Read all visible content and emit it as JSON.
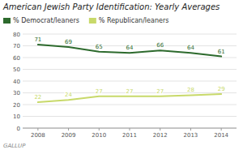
{
  "chart_data": {
    "type": "line",
    "title": "American Jewish Party Identification: Yearly Averages",
    "x": [
      2008,
      2009,
      2010,
      2011,
      2012,
      2013,
      2014
    ],
    "xlim": [
      2007.5,
      2014.5
    ],
    "xticks": [
      2008,
      2009,
      2010,
      2011,
      2012,
      2013,
      2014
    ],
    "series": [
      {
        "name": "% Democrat/leaners",
        "color": "#2d6a2d",
        "values": [
          71,
          69,
          65,
          64,
          66,
          64,
          61
        ]
      },
      {
        "name": "% Republican/leaners",
        "color": "#c8d96a",
        "values": [
          22,
          24,
          27,
          27,
          27,
          28,
          29
        ]
      }
    ],
    "ylim": [
      0,
      80
    ],
    "yticks": [
      0,
      10,
      20,
      30,
      40,
      50,
      60,
      70,
      80
    ],
    "grid": true,
    "legend": "top left",
    "data_labels": true,
    "annotations": [
      "GALLUP"
    ]
  }
}
